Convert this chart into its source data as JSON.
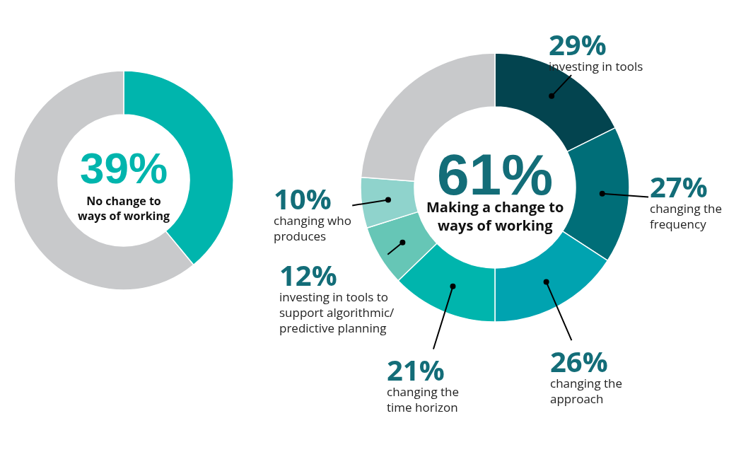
{
  "chart_data": [
    {
      "type": "donut",
      "categories": [
        null,
        null
      ],
      "values": [
        39,
        61
      ],
      "colors": [
        "#00b5ad",
        "#c8c9cb"
      ],
      "annotations": [
        "39%",
        "No change to\nways of working"
      ],
      "legend": false
    },
    {
      "type": "donut",
      "categories": [
        "investing in tools",
        "changing the\nfrequency",
        "changing the\napproach",
        "changing the\ntime horizon",
        "investing in tools to\nsupport algorithmic/\npredictive planning",
        "changing who\nproduces",
        null
      ],
      "values": [
        29,
        27,
        26,
        21,
        12,
        10,
        39
      ],
      "value_labels": [
        "29%",
        "27%",
        "26%",
        "21%",
        "12%",
        "10%",
        null
      ],
      "colors": [
        "#03444f",
        "#006e78",
        "#00a3b0",
        "#00b5ad",
        "#66c6b6",
        "#8fd3cc",
        "#c8c9cb"
      ],
      "annotations": [
        "61%",
        "Making a change to\nways of working"
      ],
      "legend": false
    }
  ]
}
